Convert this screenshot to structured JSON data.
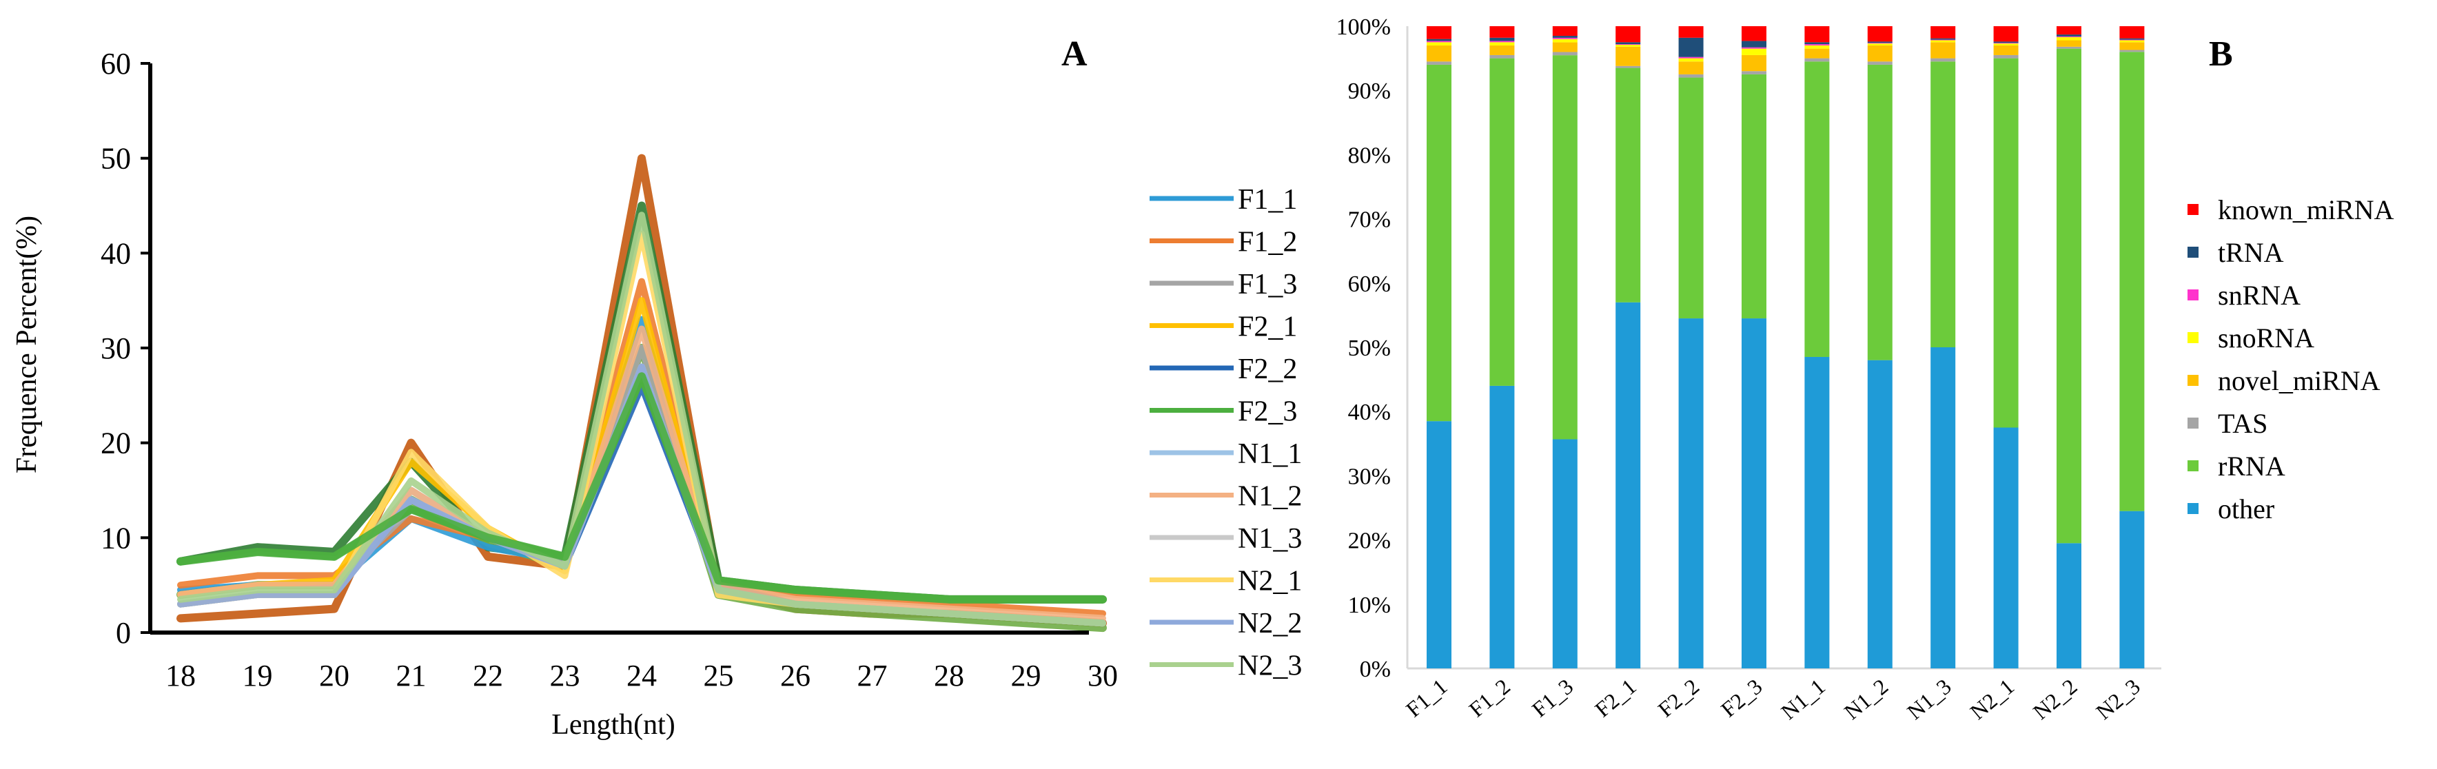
{
  "chart_data": [
    {
      "panel": "A",
      "type": "line",
      "xlabel": "Length(nt)",
      "ylabel": "Frequence Percent(%)",
      "ylim": [
        0,
        60
      ],
      "yticks": [
        "0",
        "10",
        "20",
        "30",
        "40",
        "50",
        "60"
      ],
      "x": [
        "18",
        "19",
        "20",
        "21",
        "22",
        "23",
        "24",
        "25",
        "26",
        "27",
        "28",
        "29",
        "30"
      ],
      "legend_position": "right",
      "series": [
        {
          "name": "F1_1",
          "color": "#2E9BD6",
          "values": [
            4.5,
            5,
            5,
            12,
            9,
            7.5,
            33,
            5,
            3,
            2.5,
            2,
            1.5,
            1
          ]
        },
        {
          "name": "F1_2",
          "color": "#ED7D31",
          "values": [
            5,
            6,
            6,
            12,
            10,
            7,
            37,
            5,
            4,
            3.5,
            3,
            2.5,
            2
          ]
        },
        {
          "name": "F1_3",
          "color": "#A5A5A5",
          "values": [
            4,
            5,
            5,
            13,
            10,
            7.5,
            30,
            5,
            3,
            2.5,
            2,
            1.5,
            1
          ]
        },
        {
          "name": "F2_1",
          "color": "#FFC000",
          "values": [
            4,
            5,
            5.5,
            18,
            11,
            6.5,
            35,
            4.5,
            3,
            2.5,
            2,
            1.5,
            1
          ]
        },
        {
          "name": "F2_2",
          "color": "#2367B5",
          "values": [
            3,
            4,
            4,
            14,
            10,
            7,
            26,
            5,
            3,
            2.5,
            2,
            1.5,
            1
          ]
        },
        {
          "name": "F2_3",
          "color": "#4CAF3F",
          "values": [
            7.5,
            8.5,
            8,
            13,
            10,
            8,
            27,
            5.5,
            4.5,
            4,
            3.5,
            3.5,
            3.5
          ]
        },
        {
          "name": "N1_1",
          "color": "#9DC3E6",
          "values": [
            3,
            4,
            4,
            15,
            10,
            7,
            28,
            4.5,
            3,
            2.5,
            2,
            1.5,
            1
          ]
        },
        {
          "name": "N1_2",
          "color": "#F4B183",
          "values": [
            4,
            5,
            5,
            15,
            10,
            7,
            32,
            5,
            3.5,
            3,
            2.5,
            2,
            1.5
          ]
        },
        {
          "name": "N1_3",
          "color": "#C9C9C9",
          "values": [
            3,
            4,
            4,
            14,
            10,
            7,
            28,
            4.5,
            3,
            2.5,
            2,
            1.5,
            1
          ]
        },
        {
          "name": "N2_1",
          "color": "#FFD966",
          "values": [
            3,
            4,
            4,
            19,
            11,
            6,
            42,
            4,
            3,
            2.5,
            2,
            1.5,
            1
          ]
        },
        {
          "name": "N2_2",
          "color": "#8EA9DB",
          "values": [
            3,
            4,
            4,
            14,
            10,
            7,
            28,
            4.5,
            3,
            2.5,
            2,
            1.5,
            1
          ]
        },
        {
          "name": "N2_3",
          "color": "#A9D18E",
          "values": [
            3.5,
            4.5,
            4.5,
            16,
            10.5,
            7,
            44,
            4.5,
            3,
            2.5,
            2,
            1.5,
            1
          ]
        }
      ],
      "background_series": [
        {
          "color": "#C55A11",
          "values": [
            1.5,
            2,
            2.5,
            20,
            8,
            7,
            50,
            5,
            2.5,
            2,
            2,
            1.5,
            1
          ]
        },
        {
          "color": "#2E7D32",
          "values": [
            7.5,
            9,
            8.5,
            18,
            9,
            8,
            45,
            5.5,
            4.5,
            4,
            3.5,
            3.5,
            3.5
          ]
        },
        {
          "color": "#70AD47",
          "values": [
            4,
            5,
            5,
            14,
            9.5,
            7,
            30,
            4,
            2.5,
            2,
            1.5,
            1,
            0.5
          ]
        }
      ]
    },
    {
      "panel": "B",
      "type": "bar",
      "stacked": true,
      "ylim": [
        0,
        100
      ],
      "yticks": [
        "0%",
        "10%",
        "20%",
        "30%",
        "40%",
        "50%",
        "60%",
        "70%",
        "80%",
        "90%",
        "100%"
      ],
      "categories": [
        "F1_1",
        "F1_2",
        "F1_3",
        "F2_1",
        "F2_2",
        "F2_3",
        "N1_1",
        "N1_2",
        "N1_3",
        "N2_1",
        "N2_2",
        "N2_3"
      ],
      "legend_position": "right",
      "series": [
        {
          "name": "other",
          "color": "#1F9BD7",
          "values": [
            38.5,
            44,
            35.5,
            57,
            54.5,
            54.5,
            48.5,
            48,
            50,
            37.5,
            19.5,
            24.5
          ]
        },
        {
          "name": "rRNA",
          "color": "#6CCB3B",
          "values": [
            55.5,
            51,
            59.5,
            36.5,
            37.5,
            38,
            46,
            46,
            44.5,
            57.5,
            77,
            71.5
          ]
        },
        {
          "name": "TAS",
          "color": "#A5A5A5",
          "values": [
            0.5,
            0.5,
            0.5,
            0.3,
            0.5,
            0.5,
            0.5,
            0.5,
            0.5,
            0.5,
            0.3,
            0.3
          ]
        },
        {
          "name": "novel_miRNA",
          "color": "#FFC000",
          "values": [
            2.5,
            1.5,
            1.5,
            3,
            2,
            2.5,
            1.5,
            2.5,
            2.5,
            1.5,
            1,
            1.2
          ]
        },
        {
          "name": "snoRNA",
          "color": "#FFFF00",
          "values": [
            0.5,
            0.5,
            0.5,
            0.3,
            0.5,
            1,
            0.5,
            0.3,
            0.3,
            0.3,
            0.5,
            0.3
          ]
        },
        {
          "name": "snRNA",
          "color": "#FF33CC",
          "values": [
            0.2,
            0.2,
            0.2,
            0.1,
            0.2,
            0.2,
            0.2,
            0.1,
            0.1,
            0.1,
            0.1,
            0.1
          ]
        },
        {
          "name": "tRNA",
          "color": "#1F4E79",
          "values": [
            0.3,
            0.5,
            0.3,
            0.3,
            3,
            1,
            0.3,
            0.2,
            0.2,
            0.2,
            0.3,
            0.2
          ]
        },
        {
          "name": "known_miRNA",
          "color": "#FF0000",
          "values": [
            2,
            1.8,
            1.5,
            2.5,
            1.8,
            2.3,
            2.5,
            2.4,
            1.9,
            2.4,
            1.3,
            1.9
          ]
        }
      ]
    }
  ]
}
